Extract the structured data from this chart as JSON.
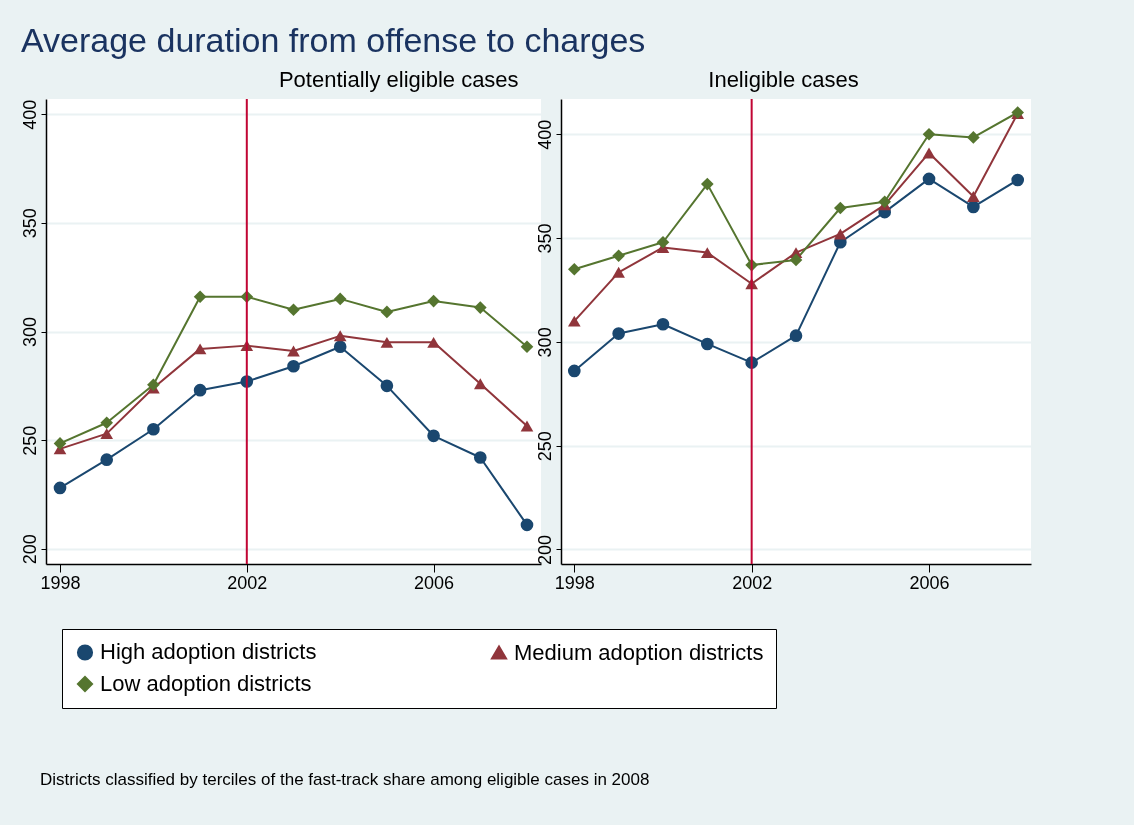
{
  "chart_data": [
    {
      "type": "line",
      "title": "Average duration from offense to charges",
      "subtitle": "Potentially eligible cases",
      "annotations": [
        "Districts classified by terciles of the fast-track share among eligible cases in 2008"
      ],
      "x": [
        1998,
        1999,
        2000,
        2001,
        2002,
        2003,
        2004,
        2005,
        2006,
        2007,
        2008
      ],
      "series": [
        {
          "name": "High adoption districts",
          "color": "#1a476f",
          "marker": "circle",
          "values": [
            228,
            241,
            255,
            273,
            277,
            284,
            293,
            275,
            252,
            242,
            211
          ]
        },
        {
          "name": "Medium adoption districts",
          "color": "#90353b",
          "marker": "triangle",
          "values": [
            246,
            253,
            274,
            292,
            293.5,
            291,
            298,
            295,
            295,
            276,
            256.5
          ]
        },
        {
          "name": "Low adoption districts",
          "color": "#55752f",
          "marker": "diamond",
          "values": [
            248.5,
            258,
            275.5,
            316,
            316,
            310,
            315,
            309,
            314,
            311,
            293
          ]
        }
      ],
      "xlim": [
        1997.7,
        2008.3
      ],
      "xticks": [
        1998,
        2002,
        2006
      ],
      "ylim": [
        193,
        407
      ],
      "yticks": [
        200,
        250,
        300,
        350,
        400
      ],
      "ref_lines": [
        {
          "axis": "x",
          "value": 2002,
          "color": "#c10534"
        }
      ],
      "grid": "y",
      "legend": "bottom"
    },
    {
      "type": "line",
      "subtitle": "Ineligible cases",
      "x": [
        1998,
        1999,
        2000,
        2001,
        2002,
        2003,
        2004,
        2005,
        2006,
        2007,
        2008
      ],
      "series": [
        {
          "color": "#1a476f",
          "marker": "circle",
          "values": [
            286,
            304,
            308.5,
            299,
            290,
            303,
            348,
            362.5,
            378.5,
            365,
            378
          ]
        },
        {
          "color": "#90353b",
          "marker": "triangle",
          "values": [
            310,
            333.5,
            345.5,
            343,
            328,
            343,
            352,
            366,
            391,
            370,
            410
          ]
        },
        {
          "color": "#55752f",
          "marker": "diamond",
          "values": [
            335,
            341.5,
            348,
            376,
            337,
            339.5,
            364.5,
            367.5,
            400,
            398.5,
            410.5
          ]
        }
      ],
      "xlim": [
        1997.7,
        2008.3
      ],
      "xticks": [
        1998,
        2002,
        2006
      ],
      "ylim": [
        193,
        417
      ],
      "yticks": [
        200,
        250,
        300,
        350,
        400
      ],
      "ref_lines": [
        {
          "axis": "x",
          "value": 2002,
          "color": "#c10534"
        }
      ],
      "grid": "y",
      "legend": false
    }
  ]
}
